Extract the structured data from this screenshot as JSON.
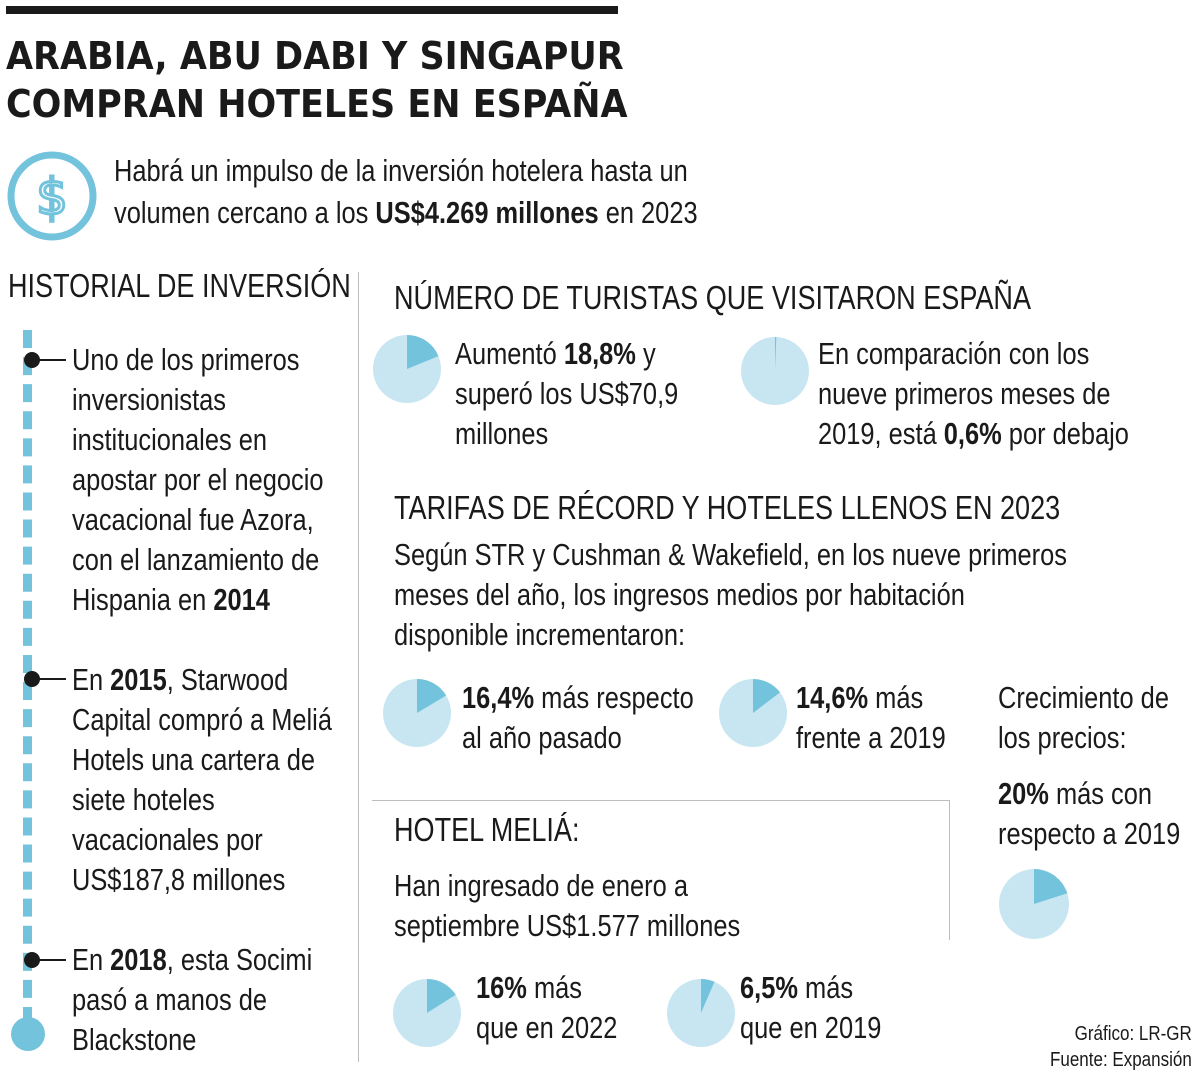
{
  "title": {
    "line1": "ARABIA, ABU DABI Y SINGAPUR",
    "line2": "COMPRAN HOTELES EN ESPAÑA"
  },
  "intro": {
    "line1": "Habrá un impulso de la inversión hotelera hasta un",
    "line2_before": "volumen cercano a los ",
    "line2_bold": "US$4.269 millones",
    "line2_after": " en 2023"
  },
  "history": {
    "header": "HISTORIAL DE INVERSIÓN",
    "item1": {
      "lines": [
        "Uno de los primeros",
        "inversionistas",
        "institucionales en",
        "apostar por el negocio",
        "vacacional fue Azora,",
        "con el lanzamiento de"
      ],
      "last_before": "Hispania en ",
      "last_bold": "2014"
    },
    "item2": {
      "first_before": "En ",
      "first_bold": "2015",
      "first_after": ", Starwood",
      "lines": [
        "Capital compró a Meliá",
        "Hotels una cartera de",
        "siete hoteles",
        "vacacionales por",
        "US$187,8 millones"
      ]
    },
    "item3": {
      "first_before": "En ",
      "first_bold": "2018",
      "first_after": ", esta Socimi",
      "lines": [
        "pasó a manos de",
        "Blackstone"
      ]
    }
  },
  "tourists": {
    "header": "NÚMERO DE TURISTAS QUE VISITARON ESPAÑA",
    "left": {
      "l1_before": "Aumentó ",
      "l1_bold": "18,8%",
      "l1_after": " y",
      "l2": "superó los US$70,9",
      "l3": "millones"
    },
    "right": {
      "l1": "En comparación con los",
      "l2": "nueve primeros meses de",
      "l3_before": "2019, está ",
      "l3_bold": "0,6%",
      "l3_after": " por debajo"
    }
  },
  "rates": {
    "header": "TARIFAS DE RÉCORD Y HOTELES LLENOS EN 2023",
    "desc": [
      "Según STR y Cushman & Wakefield, en los nueve primeros",
      "meses del año, los ingresos medios por habitación",
      "disponible incrementaron:"
    ],
    "a": {
      "bold": "16,4%",
      "after": " más respecto",
      "l2": "al año pasado"
    },
    "b": {
      "bold": "14,6%",
      "after": " más",
      "l2": "frente a 2019"
    },
    "growth": {
      "l1": "Crecimiento de",
      "l2": "los precios:",
      "bold": "20%",
      "after": " más con",
      "l4": "respecto a 2019"
    }
  },
  "melia": {
    "header": "HOTEL MELIÁ:",
    "desc": [
      "Han ingresado de enero a",
      "septiembre US$1.577 millones"
    ],
    "a": {
      "bold": "16%",
      "after": " más",
      "l2": "que en 2022"
    },
    "b": {
      "bold": "6,5%",
      "after": " más",
      "l2": "que en 2019"
    }
  },
  "source": {
    "graphic": "Gráfico: LR-GR",
    "source": "Fuente: Expansión"
  },
  "colors": {
    "pie_base": "#c8e6f2",
    "pie_slice": "#73c3dd",
    "accent": "#73c3dd"
  },
  "icons": {
    "dollar": "dollar-circle-icon"
  },
  "chart_data": [
    {
      "type": "pie",
      "label": "Aumentó 18,8%",
      "values": [
        18.8,
        81.2
      ]
    },
    {
      "type": "pie",
      "label": "0,6% por debajo",
      "values": [
        0.6,
        99.4
      ]
    },
    {
      "type": "pie",
      "label": "16,4% más respecto al año pasado",
      "values": [
        16.4,
        83.6
      ]
    },
    {
      "type": "pie",
      "label": "14,6% más frente a 2019",
      "values": [
        14.6,
        85.4
      ]
    },
    {
      "type": "pie",
      "label": "20% más con respecto a 2019",
      "values": [
        20,
        80
      ]
    },
    {
      "type": "pie",
      "label": "16% más que en 2022",
      "values": [
        16,
        84
      ]
    },
    {
      "type": "pie",
      "label": "6,5% más que en 2019",
      "values": [
        6.5,
        93.5
      ]
    }
  ]
}
